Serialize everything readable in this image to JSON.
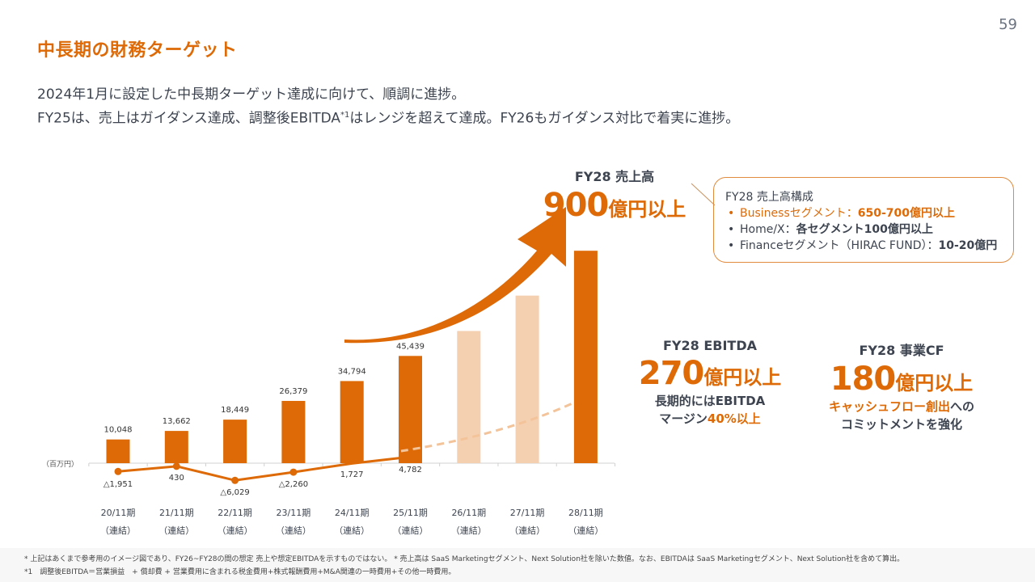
{
  "page_number": "59",
  "title": "中長期の財務ターゲット",
  "lead": {
    "line1": "2024年1月に設定した中長期ターゲット達成に向けて、順調に進捗。",
    "line2_a": "FY25は、売上はガイダンス達成、調整後EBITDA",
    "line2_sup": "*1",
    "line2_b": "はレンジを超えて達成。FY26もガイダンス対比で着実に進捗。"
  },
  "revenue_target": {
    "label": "FY28 売上高",
    "value": "900",
    "unit": "億円以上"
  },
  "composition_box": {
    "title": "FY28 売上高構成",
    "items": [
      {
        "name": "Businessセグメント：",
        "value": "650-700億円以上",
        "highlight": true
      },
      {
        "name": "Home/X：",
        "value": "各セグメント100億円以上",
        "highlight": false
      },
      {
        "name": "Financeセグメント（HIRAC FUND）：",
        "value": "10-20億円",
        "highlight": false
      }
    ]
  },
  "ebitda_target": {
    "label": "FY28 EBITDA",
    "value": "270",
    "unit": "億円以上",
    "note_line1": "長期的にはEBITDA",
    "note_line2_a": "マージン",
    "note_line2_b": "40%以上"
  },
  "cf_target": {
    "label": "FY28 事業CF",
    "value": "180",
    "unit": "億円以上",
    "note_line1_a": "キャッシュフロー創出",
    "note_line1_b": "への",
    "note_line2": "コミットメントを強化"
  },
  "colors": {
    "accent": "#dd6a06",
    "projection": "#f5d0b0",
    "text": "#3d4450",
    "axis": "#d0d0d0"
  },
  "chart_data": {
    "type": "bar",
    "unit_label": "（百万円）",
    "categories": [
      "20/11期",
      "21/11期",
      "22/11期",
      "23/11期",
      "24/11期",
      "25/11期",
      "26/11期",
      "27/11期",
      "28/11期"
    ],
    "category_sub": "（連結）",
    "series": [
      {
        "name": "売上高",
        "type": "bar",
        "values": [
          10048,
          13662,
          18449,
          26379,
          34794,
          45439,
          56000,
          71000,
          90000
        ],
        "labels": [
          "10,048",
          "13,662",
          "18,449",
          "26,379",
          "34,794",
          "45,439",
          null,
          null,
          null
        ],
        "projected": [
          false,
          false,
          false,
          false,
          false,
          false,
          true,
          true,
          false
        ]
      },
      {
        "name": "調整後EBITDA",
        "type": "line",
        "values": [
          -1951,
          430,
          -6029,
          -2260,
          1727,
          4782
        ],
        "labels": [
          "△1,951",
          "430",
          "△6,029",
          "△2,260",
          "1,727",
          "4,782"
        ],
        "projection_trend": "dashed curve rising toward FY28 target"
      }
    ],
    "ylim": [
      -8000,
      95000
    ],
    "grid": false,
    "legend": "none"
  },
  "footer": {
    "line1": "* 上記はあくまで参考用のイメージ図であり、FY26~FY28の間の想定 売上や想定EBITDAを示すものではない。 * 売上高は SaaS Marketingセグメント、Next Solution社を除いた数値。なお、EBITDAは SaaS Marketingセグメント、Next Solution社を含めて算出。",
    "line2": "*1　調整後EBITDA＝営業損益　+ 償却費 + 営業費用に含まれる税金費用+株式報酬費用+M&A関連の一時費用+その他一時費用。"
  }
}
